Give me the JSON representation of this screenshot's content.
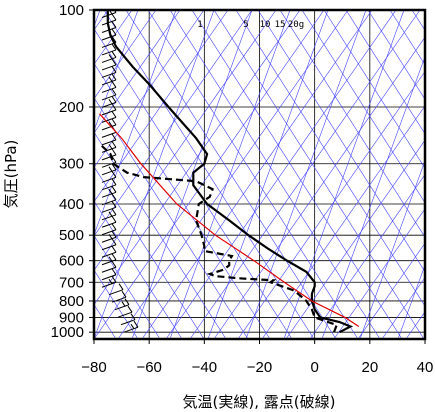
{
  "chart_data": {
    "type": "line",
    "subtype": "skew-T log-P thermodynamic diagram",
    "xlabel": "気温(実線), 露点(破線)",
    "ylabel": "気圧(hPa)",
    "x_ticks": [
      -80,
      -60,
      -40,
      -20,
      0,
      20,
      40
    ],
    "x_tick_labels": [
      "−80",
      "−60",
      "−40",
      "−20",
      "0",
      "20",
      "40"
    ],
    "y_ticks": [
      100,
      200,
      300,
      400,
      500,
      600,
      700,
      800,
      900,
      1000
    ],
    "y_tick_labels": [
      "100",
      "200",
      "300",
      "400",
      "500",
      "600",
      "700",
      "800",
      "900",
      "1000"
    ],
    "xlim": [
      -80,
      40
    ],
    "ylim": [
      1050,
      100
    ],
    "y_scale": "log",
    "mixing_ratio_labels": [
      "1",
      "5",
      "10",
      "15",
      "20g"
    ],
    "series": [
      {
        "style": "solid",
        "color": "#000000",
        "points": [
          [
            1000,
            9
          ],
          [
            960,
            13
          ],
          [
            930,
            9
          ],
          [
            900,
            2
          ],
          [
            850,
            0
          ],
          [
            800,
            -1
          ],
          [
            760,
            -1
          ],
          [
            720,
            0
          ],
          [
            700,
            0
          ],
          [
            650,
            -3
          ],
          [
            600,
            -10
          ],
          [
            550,
            -17
          ],
          [
            500,
            -24
          ],
          [
            450,
            -31
          ],
          [
            400,
            -39
          ],
          [
            350,
            -44
          ],
          [
            320,
            -44
          ],
          [
            300,
            -40
          ],
          [
            280,
            -39
          ],
          [
            250,
            -43
          ],
          [
            200,
            -53
          ],
          [
            170,
            -60
          ],
          [
            150,
            -66
          ],
          [
            130,
            -72
          ],
          [
            120,
            -74
          ],
          [
            110,
            -75
          ],
          [
            100,
            -75
          ]
        ]
      },
      {
        "style": "dashed",
        "color": "#000000",
        "points": [
          [
            1000,
            7
          ],
          [
            950,
            8
          ],
          [
            900,
            0
          ],
          [
            850,
            -1
          ],
          [
            800,
            -3
          ],
          [
            760,
            -6
          ],
          [
            740,
            -8
          ],
          [
            720,
            -12
          ],
          [
            700,
            -16
          ],
          [
            690,
            -15
          ],
          [
            680,
            -28
          ],
          [
            670,
            -36
          ],
          [
            660,
            -38
          ],
          [
            640,
            -33
          ],
          [
            620,
            -31
          ],
          [
            600,
            -31
          ],
          [
            580,
            -30
          ],
          [
            560,
            -40
          ],
          [
            540,
            -40
          ],
          [
            500,
            -41
          ],
          [
            450,
            -43
          ],
          [
            400,
            -42
          ],
          [
            380,
            -38
          ],
          [
            360,
            -37
          ],
          [
            340,
            -43
          ],
          [
            330,
            -62
          ],
          [
            320,
            -68
          ],
          [
            300,
            -73
          ],
          [
            280,
            -74
          ],
          [
            260,
            -78
          ]
        ]
      },
      {
        "style": "solid-thin",
        "color": "#e00000",
        "points": [
          [
            960,
            16
          ],
          [
            900,
            11
          ],
          [
            800,
            -1
          ],
          [
            700,
            -11
          ],
          [
            600,
            -22
          ],
          [
            500,
            -36
          ],
          [
            400,
            -50
          ],
          [
            300,
            -63
          ],
          [
            250,
            -70
          ],
          [
            210,
            -78
          ]
        ]
      }
    ],
    "wind_barbs": {
      "count": 44,
      "p_range": [
        1000,
        100
      ]
    },
    "grid_colors": {
      "isobars": "#000000",
      "isotherms": "#000000",
      "dry_adiabats": "#4444ff",
      "moist_adiabats": "#4444ff",
      "mixing_ratio": "#4444ff"
    }
  }
}
